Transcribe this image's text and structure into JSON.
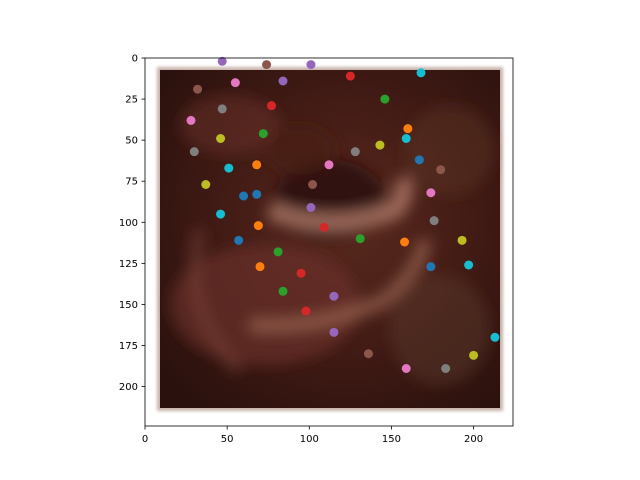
{
  "chart_data": {
    "type": "scatter",
    "title": "",
    "xlabel": "",
    "ylabel": "",
    "xlim": [
      0,
      224
    ],
    "ylim": [
      224,
      0
    ],
    "y_inverted": true,
    "grid": false,
    "background": "blurred image (dark red/brown tones, 224x224) shown behind the points",
    "xticks": [
      0,
      50,
      100,
      150,
      200
    ],
    "yticks": [
      0,
      25,
      50,
      75,
      100,
      125,
      150,
      175,
      200
    ],
    "xtick_labels": [
      "0",
      "50",
      "100",
      "150",
      "200"
    ],
    "ytick_labels": [
      "0",
      "25",
      "50",
      "75",
      "100",
      "125",
      "150",
      "175",
      "200"
    ],
    "points": [
      {
        "x": 47,
        "y": 2,
        "color": "#9467bd"
      },
      {
        "x": 74,
        "y": 4,
        "color": "#8c564b"
      },
      {
        "x": 101,
        "y": 4,
        "color": "#9467bd"
      },
      {
        "x": 168,
        "y": 9,
        "color": "#17becf"
      },
      {
        "x": 125,
        "y": 11,
        "color": "#d62728"
      },
      {
        "x": 55,
        "y": 15,
        "color": "#e377c2"
      },
      {
        "x": 84,
        "y": 14,
        "color": "#9467bd"
      },
      {
        "x": 32,
        "y": 19,
        "color": "#8c564b"
      },
      {
        "x": 146,
        "y": 25,
        "color": "#2ca02c"
      },
      {
        "x": 77,
        "y": 29,
        "color": "#d62728"
      },
      {
        "x": 47,
        "y": 31,
        "color": "#7f7f7f"
      },
      {
        "x": 28,
        "y": 38,
        "color": "#e377c2"
      },
      {
        "x": 160,
        "y": 43,
        "color": "#ff7f0e"
      },
      {
        "x": 72,
        "y": 46,
        "color": "#2ca02c"
      },
      {
        "x": 46,
        "y": 49,
        "color": "#bcbd22"
      },
      {
        "x": 159,
        "y": 49,
        "color": "#17becf"
      },
      {
        "x": 143,
        "y": 53,
        "color": "#bcbd22"
      },
      {
        "x": 30,
        "y": 57,
        "color": "#7f7f7f"
      },
      {
        "x": 128,
        "y": 57,
        "color": "#7f7f7f"
      },
      {
        "x": 167,
        "y": 62,
        "color": "#1f77b4"
      },
      {
        "x": 68,
        "y": 65,
        "color": "#ff7f0e"
      },
      {
        "x": 112,
        "y": 65,
        "color": "#e377c2"
      },
      {
        "x": 51,
        "y": 67,
        "color": "#17becf"
      },
      {
        "x": 180,
        "y": 68,
        "color": "#8c564b"
      },
      {
        "x": 37,
        "y": 77,
        "color": "#bcbd22"
      },
      {
        "x": 102,
        "y": 77,
        "color": "#8c564b"
      },
      {
        "x": 174,
        "y": 82,
        "color": "#e377c2"
      },
      {
        "x": 68,
        "y": 83,
        "color": "#1f77b4"
      },
      {
        "x": 60,
        "y": 84,
        "color": "#1f77b4"
      },
      {
        "x": 101,
        "y": 91,
        "color": "#9467bd"
      },
      {
        "x": 46,
        "y": 95,
        "color": "#17becf"
      },
      {
        "x": 176,
        "y": 99,
        "color": "#7f7f7f"
      },
      {
        "x": 69,
        "y": 102,
        "color": "#ff7f0e"
      },
      {
        "x": 109,
        "y": 103,
        "color": "#d62728"
      },
      {
        "x": 131,
        "y": 110,
        "color": "#2ca02c"
      },
      {
        "x": 57,
        "y": 111,
        "color": "#1f77b4"
      },
      {
        "x": 158,
        "y": 112,
        "color": "#ff7f0e"
      },
      {
        "x": 193,
        "y": 111,
        "color": "#bcbd22"
      },
      {
        "x": 81,
        "y": 118,
        "color": "#2ca02c"
      },
      {
        "x": 70,
        "y": 127,
        "color": "#ff7f0e"
      },
      {
        "x": 174,
        "y": 127,
        "color": "#1f77b4"
      },
      {
        "x": 197,
        "y": 126,
        "color": "#17becf"
      },
      {
        "x": 95,
        "y": 131,
        "color": "#d62728"
      },
      {
        "x": 84,
        "y": 142,
        "color": "#2ca02c"
      },
      {
        "x": 115,
        "y": 145,
        "color": "#9467bd"
      },
      {
        "x": 98,
        "y": 154,
        "color": "#d62728"
      },
      {
        "x": 115,
        "y": 167,
        "color": "#9467bd"
      },
      {
        "x": 213,
        "y": 170,
        "color": "#17becf"
      },
      {
        "x": 136,
        "y": 180,
        "color": "#8c564b"
      },
      {
        "x": 200,
        "y": 181,
        "color": "#bcbd22"
      },
      {
        "x": 159,
        "y": 189,
        "color": "#e377c2"
      },
      {
        "x": 183,
        "y": 189,
        "color": "#7f7f7f"
      }
    ]
  }
}
